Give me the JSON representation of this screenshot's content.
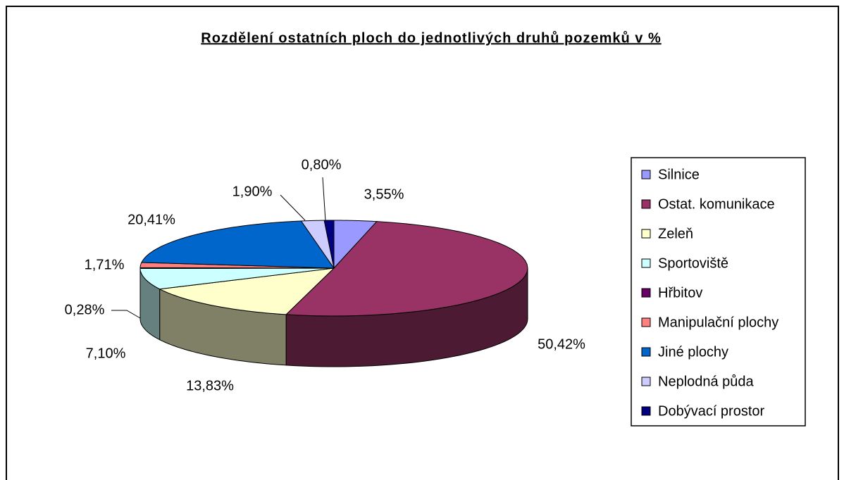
{
  "chart_data": {
    "type": "pie3d",
    "title": "Rozdělení ostatních ploch do jednotlivých druhů pozemků v %",
    "categories": [
      "Silnice",
      "Ostat. komunikace",
      "Zeleň",
      "Sportoviště",
      "Hřbitov",
      "Manipulační plochy",
      "Jiné plochy",
      "Neplodná půda",
      "Dobývací prostor"
    ],
    "values": [
      3.55,
      50.42,
      13.83,
      7.1,
      0.28,
      1.71,
      20.41,
      1.9,
      0.8
    ],
    "value_labels": [
      "3,55%",
      "50,42%",
      "13,83%",
      "7,10%",
      "0,28%",
      "1,71%",
      "20,41%",
      "1,90%",
      "0,80%"
    ],
    "colors": [
      "#9999ff",
      "#993366",
      "#ffffcc",
      "#ccffff",
      "#660066",
      "#ff8080",
      "#0066cc",
      "#ccccff",
      "#000080"
    ],
    "legend": "right"
  }
}
